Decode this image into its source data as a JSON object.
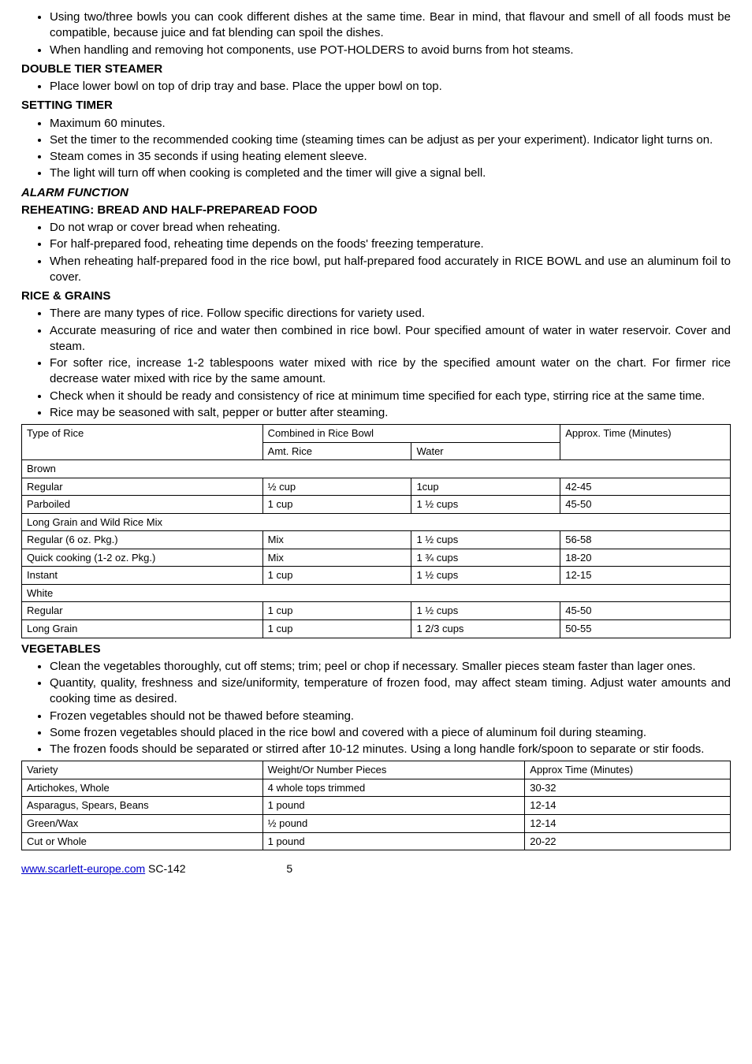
{
  "bullets_top": [
    "Using two/three bowls you can cook different dishes at the same time. Bear in mind, that flavour and smell of all foods must be compatible, because juice and fat blending can spoil the dishes.",
    "When handling and removing hot components, use POT-HOLDERS to avoid burns from hot steams."
  ],
  "h_double": "DOUBLE TIER STEAMER",
  "bullets_double": [
    "Place lower bowl on top of drip tray and base. Place the upper bowl on top."
  ],
  "h_setting": "SETTING TIMER",
  "bullets_setting": [
    "Maximum 60 minutes.",
    "Set the timer to the recommended cooking time (steaming times can be adjust as per your experiment). Indicator light turns on.",
    "Steam comes in 35 seconds if using heating element sleeve.",
    "The light will turn off when cooking is completed and the timer will give a signal bell."
  ],
  "h_alarm": "ALARM FUNCTION",
  "h_reheat": "REHEATING: BREAD AND HALF-PREPAREAD FOOD",
  "bullets_reheat": [
    "Do not wrap or cover bread when reheating.",
    "For half-prepared food, reheating time depends on the foods' freezing temperature.",
    "When reheating half-prepared food in the rice bowl, put half-prepared food accurately in RICE BOWL and use an aluminum foil to cover."
  ],
  "h_rice": "RICE & GRAINS",
  "bullets_rice": [
    "There are many types of rice. Follow specific directions for variety used.",
    "Accurate measuring of rice and water then combined in rice bowl. Pour specified amount of water in water reservoir. Cover and steam.",
    "For softer rice, increase 1-2 tablespoons water mixed with rice by the specified amount water on the chart. For firmer rice decrease water mixed with rice by the same amount.",
    "Check when it should be ready and consistency of rice at minimum time specified for each type, stirring rice at the same time.",
    "Rice may be seasoned with salt, pepper or butter after steaming."
  ],
  "rice_table": {
    "h_type": "Type of Rice",
    "h_combined": "Combined in Rice Bowl",
    "h_approx": "Approx. Time (Minutes)",
    "h_amt": "Amt. Rice",
    "h_water": "Water",
    "rows": [
      [
        "Brown",
        "",
        "",
        ""
      ],
      [
        "Regular",
        "½ cup",
        "1cup",
        "42-45"
      ],
      [
        "Parboiled",
        "1 cup",
        "1 ½ cups",
        "45-50"
      ],
      [
        "Long Grain and Wild Rice Mix",
        "",
        "",
        ""
      ],
      [
        "Regular (6 oz. Pkg.)",
        "Mix",
        "1 ½ cups",
        "56-58"
      ],
      [
        "Quick cooking (1-2 oz. Pkg.)",
        "Mix",
        "1 ¾ cups",
        "18-20"
      ],
      [
        "Instant",
        "1 cup",
        "1 ½ cups",
        "12-15"
      ],
      [
        "White",
        "",
        "",
        ""
      ],
      [
        "Regular",
        "1 cup",
        "1 ½ cups",
        "45-50"
      ],
      [
        "Long Grain",
        "1 cup",
        "1 2/3 cups",
        "50-55"
      ]
    ]
  },
  "h_veg": "VEGETABLES",
  "bullets_veg": [
    "Clean the vegetables thoroughly, cut off stems; trim; peel or chop if necessary. Smaller pieces steam faster than lager ones.",
    "Quantity, quality, freshness and size/uniformity, temperature of frozen food, may affect steam timing. Adjust water amounts and cooking time as desired.",
    "Frozen vegetables should not be thawed before steaming.",
    "Some frozen vegetables should placed in the rice bowl and covered with a piece of aluminum foil during steaming.",
    "The frozen foods should be separated or stirred after 10-12 minutes. Using a long handle fork/spoon to separate or stir foods."
  ],
  "veg_table": {
    "h_variety": "Variety",
    "h_weight": "Weight/Or Number Pieces",
    "h_time": "Approx Time (Minutes)",
    "rows": [
      [
        "Artichokes, Whole",
        "4 whole tops trimmed",
        "30-32"
      ],
      [
        "Asparagus, Spears, Beans",
        "1 pound",
        "12-14"
      ],
      [
        "Green/Wax",
        "½ pound",
        "12-14"
      ],
      [
        "Cut or Whole",
        "1 pound",
        "20-22"
      ]
    ]
  },
  "footer_link": "www.scarlett-europe.com",
  "footer_text": "   SC-142",
  "footer_page": "5"
}
